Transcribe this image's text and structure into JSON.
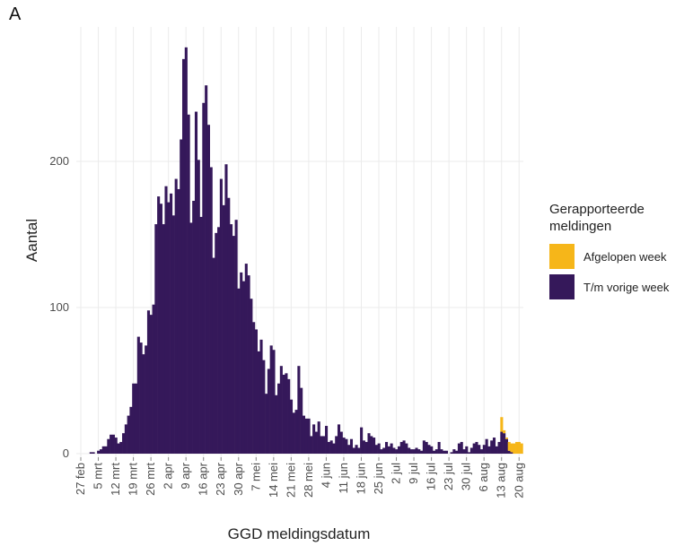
{
  "chart_data": {
    "type": "stacked_bar",
    "panel_label": "A",
    "x_label": "GGD meldingsdatum",
    "y_label": "Aantal",
    "legend_title": "Gerapporteerde meldingen",
    "legend_position": "right",
    "ylim": [
      0,
      292
    ],
    "yticks": [
      0,
      100,
      200
    ],
    "grid": true,
    "categories": [
      "27 feb",
      null,
      null,
      null,
      null,
      null,
      null,
      "5 mrt",
      null,
      null,
      null,
      null,
      null,
      null,
      "12 mrt",
      null,
      null,
      null,
      null,
      null,
      null,
      "19 mrt",
      null,
      null,
      null,
      null,
      null,
      null,
      "26 mrt",
      null,
      null,
      null,
      null,
      null,
      null,
      "2 apr",
      null,
      null,
      null,
      null,
      null,
      null,
      "9 apr",
      null,
      null,
      null,
      null,
      null,
      null,
      "16 apr",
      null,
      null,
      null,
      null,
      null,
      null,
      "23 apr",
      null,
      null,
      null,
      null,
      null,
      null,
      "30 apr",
      null,
      null,
      null,
      null,
      null,
      null,
      "7 mei",
      null,
      null,
      null,
      null,
      null,
      null,
      "14 mei",
      null,
      null,
      null,
      null,
      null,
      null,
      "21 mei",
      null,
      null,
      null,
      null,
      null,
      null,
      "28 mei",
      null,
      null,
      null,
      null,
      null,
      null,
      "4 jun",
      null,
      null,
      null,
      null,
      null,
      null,
      "11 jun",
      null,
      null,
      null,
      null,
      null,
      null,
      "18 jun",
      null,
      null,
      null,
      null,
      null,
      null,
      "25 jun",
      null,
      null,
      null,
      null,
      null,
      null,
      "2 jul",
      null,
      null,
      null,
      null,
      null,
      null,
      "9 jul",
      null,
      null,
      null,
      null,
      null,
      null,
      "16 jul",
      null,
      null,
      null,
      null,
      null,
      null,
      "23 jul",
      null,
      null,
      null,
      null,
      null,
      null,
      "30 jul",
      null,
      null,
      null,
      null,
      null,
      null,
      "6 aug",
      null,
      null,
      null,
      null,
      null,
      null,
      "13 aug",
      null,
      null,
      null,
      null,
      null,
      null,
      "20 aug",
      null
    ],
    "series": [
      {
        "name": "Afgelopen week",
        "color": "#f6b619",
        "values": [
          0,
          0,
          0,
          0,
          0,
          0,
          0,
          0,
          0,
          0,
          0,
          0,
          0,
          0,
          0,
          0,
          0,
          0,
          0,
          0,
          0,
          0,
          0,
          0,
          0,
          0,
          0,
          0,
          0,
          0,
          0,
          0,
          0,
          0,
          0,
          0,
          0,
          0,
          0,
          0,
          0,
          0,
          0,
          0,
          0,
          0,
          0,
          0,
          0,
          0,
          0,
          0,
          0,
          0,
          0,
          0,
          0,
          0,
          0,
          0,
          0,
          0,
          0,
          0,
          0,
          0,
          0,
          0,
          0,
          0,
          0,
          0,
          0,
          0,
          0,
          0,
          0,
          0,
          0,
          0,
          0,
          0,
          0,
          0,
          0,
          0,
          0,
          0,
          0,
          0,
          0,
          0,
          0,
          0,
          0,
          0,
          0,
          0,
          0,
          0,
          0,
          0,
          0,
          0,
          0,
          0,
          0,
          0,
          0,
          0,
          0,
          0,
          0,
          0,
          0,
          0,
          0,
          0,
          0,
          0,
          0,
          0,
          0,
          0,
          0,
          0,
          0,
          0,
          0,
          0,
          0,
          0,
          0,
          0,
          0,
          0,
          0,
          0,
          0,
          0,
          0,
          0,
          0,
          0,
          0,
          0,
          0,
          0,
          0,
          0,
          0,
          0,
          0,
          0,
          0,
          0,
          0,
          0,
          0,
          0,
          0,
          0,
          0,
          0,
          0,
          0,
          0,
          0,
          10,
          2,
          1,
          6,
          6,
          7,
          8,
          8,
          7
        ]
      },
      {
        "name": "T/m vorige week",
        "color": "#35185a",
        "values": [
          0,
          0,
          0,
          0,
          1,
          1,
          0,
          2,
          3,
          5,
          5,
          10,
          13,
          13,
          11,
          7,
          8,
          14,
          20,
          26,
          32,
          48,
          48,
          80,
          76,
          68,
          74,
          98,
          95,
          102,
          157,
          176,
          171,
          157,
          183,
          172,
          178,
          163,
          188,
          181,
          215,
          270,
          278,
          232,
          158,
          173,
          234,
          201,
          162,
          240,
          252,
          225,
          196,
          134,
          151,
          155,
          188,
          170,
          198,
          175,
          157,
          149,
          160,
          113,
          124,
          118,
          130,
          122,
          106,
          90,
          85,
          70,
          78,
          64,
          41,
          58,
          74,
          71,
          40,
          48,
          60,
          54,
          55,
          51,
          37,
          28,
          30,
          60,
          45,
          26,
          24,
          24,
          12,
          20,
          15,
          22,
          12,
          12,
          19,
          8,
          9,
          7,
          12,
          20,
          15,
          11,
          10,
          6,
          10,
          4,
          6,
          4,
          18,
          9,
          8,
          14,
          12,
          11,
          6,
          7,
          3,
          4,
          8,
          5,
          7,
          4,
          3,
          5,
          8,
          9,
          7,
          4,
          3,
          3,
          4,
          3,
          2,
          9,
          8,
          6,
          5,
          2,
          3,
          8,
          3,
          2,
          2,
          0,
          1,
          3,
          2,
          7,
          8,
          3,
          5,
          1,
          4,
          7,
          8,
          6,
          3,
          6,
          10,
          5,
          9,
          11,
          5,
          8,
          15,
          14,
          10,
          2,
          1,
          0,
          0,
          0,
          0
        ]
      }
    ]
  }
}
